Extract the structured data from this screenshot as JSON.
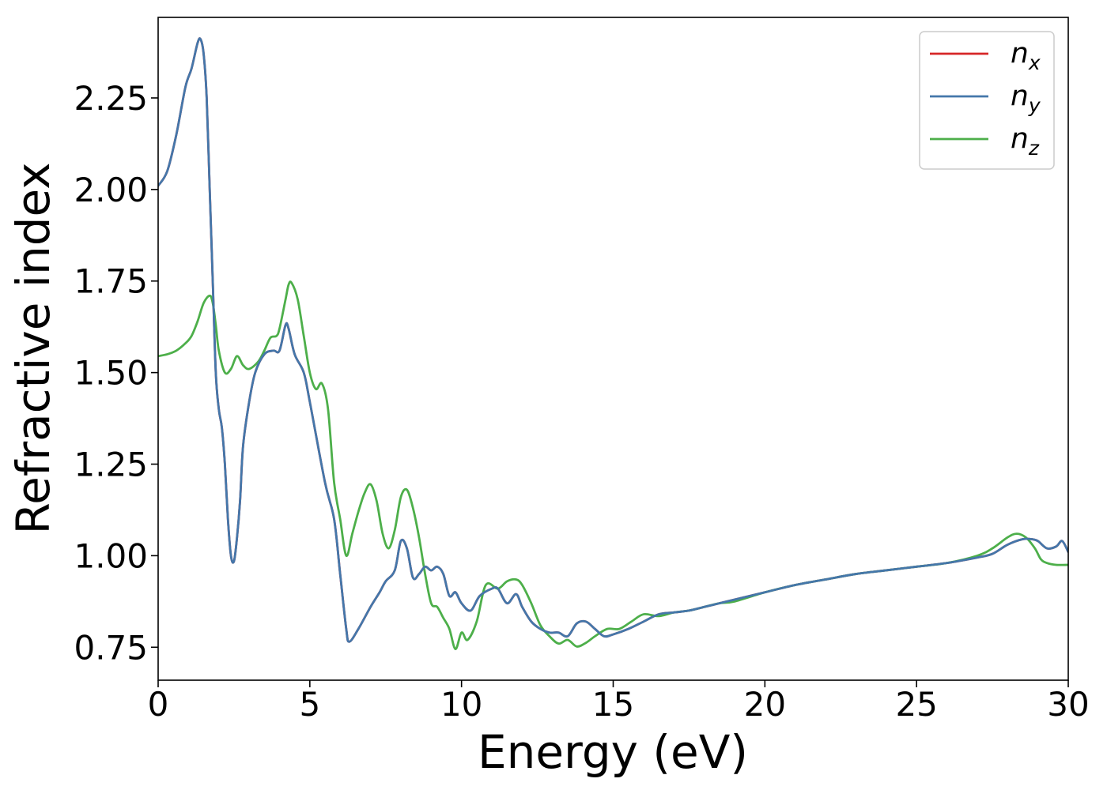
{
  "chart_data": {
    "type": "line",
    "xlabel": "Energy (eV)",
    "ylabel": "Refractive index",
    "xlim": [
      0,
      30
    ],
    "ylim": [
      0.66,
      2.47
    ],
    "xticks": [
      0,
      5,
      10,
      15,
      20,
      25,
      30
    ],
    "xtick_labels": [
      "0",
      "5",
      "10",
      "15",
      "20",
      "25",
      "30"
    ],
    "yticks": [
      0.75,
      1.0,
      1.25,
      1.5,
      1.75,
      2.0,
      2.25
    ],
    "ytick_labels": [
      "0.75",
      "1.00",
      "1.25",
      "1.50",
      "1.75",
      "2.00",
      "2.25"
    ],
    "grid": false,
    "legend_position": "top-right",
    "series": [
      {
        "name": "n_x",
        "label_base": "n",
        "label_sub": "x",
        "color": "#d62728",
        "x": [
          0,
          0.3,
          0.6,
          0.9,
          1.1,
          1.3,
          1.4,
          1.5,
          1.6,
          1.7,
          1.8,
          1.9,
          2.0,
          2.1,
          2.2,
          2.3,
          2.4,
          2.5,
          2.6,
          2.7,
          2.8,
          3.0,
          3.2,
          3.5,
          3.8,
          4.0,
          4.2,
          4.3,
          4.5,
          4.8,
          5.0,
          5.5,
          5.8,
          6.0,
          6.2,
          6.3,
          6.6,
          7.0,
          7.3,
          7.5,
          7.8,
          8.0,
          8.2,
          8.4,
          8.6,
          8.8,
          9.0,
          9.2,
          9.4,
          9.6,
          9.8,
          10.0,
          10.3,
          10.6,
          11.0,
          11.2,
          11.5,
          11.8,
          12.0,
          12.3,
          12.6,
          12.9,
          13.2,
          13.5,
          13.8,
          14.1,
          14.4,
          14.7,
          15.0,
          15.5,
          16.0,
          16.5,
          17.0,
          17.5,
          18.0,
          18.5,
          19.0,
          20.0,
          21.0,
          22.0,
          23.0,
          24.0,
          25.0,
          26.0,
          27.0,
          27.5,
          28.0,
          28.5,
          28.8,
          29.0,
          29.3,
          29.6,
          29.8,
          30.0
        ],
        "values": [
          2.01,
          2.05,
          2.15,
          2.28,
          2.33,
          2.4,
          2.41,
          2.37,
          2.25,
          2.0,
          1.75,
          1.5,
          1.4,
          1.35,
          1.25,
          1.1,
          1.0,
          0.985,
          1.05,
          1.15,
          1.3,
          1.42,
          1.5,
          1.55,
          1.56,
          1.56,
          1.63,
          1.62,
          1.55,
          1.5,
          1.42,
          1.2,
          1.1,
          0.95,
          0.8,
          0.765,
          0.8,
          0.86,
          0.9,
          0.93,
          0.96,
          1.04,
          1.02,
          0.94,
          0.95,
          0.97,
          0.96,
          0.97,
          0.95,
          0.89,
          0.9,
          0.87,
          0.85,
          0.89,
          0.91,
          0.91,
          0.87,
          0.895,
          0.86,
          0.82,
          0.8,
          0.79,
          0.79,
          0.78,
          0.815,
          0.82,
          0.8,
          0.78,
          0.785,
          0.8,
          0.82,
          0.84,
          0.845,
          0.85,
          0.86,
          0.87,
          0.88,
          0.9,
          0.92,
          0.935,
          0.95,
          0.96,
          0.97,
          0.98,
          0.995,
          1.005,
          1.03,
          1.045,
          1.045,
          1.04,
          1.02,
          1.025,
          1.04,
          1.01
        ]
      },
      {
        "name": "n_y",
        "label_base": "n",
        "label_sub": "y",
        "color": "#4477aa",
        "x": [
          0,
          0.3,
          0.6,
          0.9,
          1.1,
          1.3,
          1.4,
          1.5,
          1.6,
          1.7,
          1.8,
          1.9,
          2.0,
          2.1,
          2.2,
          2.3,
          2.4,
          2.5,
          2.6,
          2.7,
          2.8,
          3.0,
          3.2,
          3.5,
          3.8,
          4.0,
          4.2,
          4.3,
          4.5,
          4.8,
          5.0,
          5.5,
          5.8,
          6.0,
          6.2,
          6.3,
          6.6,
          7.0,
          7.3,
          7.5,
          7.8,
          8.0,
          8.2,
          8.4,
          8.6,
          8.8,
          9.0,
          9.2,
          9.4,
          9.6,
          9.8,
          10.0,
          10.3,
          10.6,
          11.0,
          11.2,
          11.5,
          11.8,
          12.0,
          12.3,
          12.6,
          12.9,
          13.2,
          13.5,
          13.8,
          14.1,
          14.4,
          14.7,
          15.0,
          15.5,
          16.0,
          16.5,
          17.0,
          17.5,
          18.0,
          18.5,
          19.0,
          20.0,
          21.0,
          22.0,
          23.0,
          24.0,
          25.0,
          26.0,
          27.0,
          27.5,
          28.0,
          28.5,
          28.8,
          29.0,
          29.3,
          29.6,
          29.8,
          30.0
        ],
        "values": [
          2.01,
          2.05,
          2.15,
          2.28,
          2.33,
          2.4,
          2.41,
          2.37,
          2.25,
          2.0,
          1.75,
          1.5,
          1.4,
          1.35,
          1.25,
          1.1,
          1.0,
          0.985,
          1.05,
          1.15,
          1.3,
          1.42,
          1.5,
          1.55,
          1.56,
          1.56,
          1.63,
          1.62,
          1.55,
          1.5,
          1.42,
          1.2,
          1.1,
          0.95,
          0.8,
          0.765,
          0.8,
          0.86,
          0.9,
          0.93,
          0.96,
          1.04,
          1.02,
          0.94,
          0.95,
          0.97,
          0.96,
          0.97,
          0.95,
          0.89,
          0.9,
          0.87,
          0.85,
          0.89,
          0.91,
          0.91,
          0.87,
          0.895,
          0.86,
          0.82,
          0.8,
          0.79,
          0.79,
          0.78,
          0.815,
          0.82,
          0.8,
          0.78,
          0.785,
          0.8,
          0.82,
          0.84,
          0.845,
          0.85,
          0.86,
          0.87,
          0.88,
          0.9,
          0.92,
          0.935,
          0.95,
          0.96,
          0.97,
          0.98,
          0.995,
          1.005,
          1.03,
          1.045,
          1.045,
          1.04,
          1.02,
          1.025,
          1.04,
          1.01
        ]
      },
      {
        "name": "n_z",
        "label_base": "n",
        "label_sub": "z",
        "color": "#4daf4a",
        "x": [
          0,
          0.3,
          0.6,
          0.9,
          1.1,
          1.3,
          1.5,
          1.7,
          1.8,
          1.9,
          2.0,
          2.2,
          2.4,
          2.6,
          2.8,
          3.0,
          3.3,
          3.5,
          3.7,
          3.9,
          4.0,
          4.2,
          4.3,
          4.4,
          4.6,
          4.8,
          5.0,
          5.2,
          5.4,
          5.6,
          5.8,
          6.0,
          6.2,
          6.4,
          6.6,
          6.8,
          7.0,
          7.2,
          7.4,
          7.6,
          7.8,
          8.0,
          8.2,
          8.4,
          8.6,
          8.8,
          9.0,
          9.2,
          9.4,
          9.6,
          9.8,
          10.0,
          10.2,
          10.5,
          10.8,
          11.2,
          11.5,
          11.8,
          12.0,
          12.3,
          12.6,
          12.9,
          13.2,
          13.5,
          13.8,
          14.1,
          14.4,
          14.8,
          15.2,
          15.6,
          16.0,
          16.5,
          17.0,
          17.5,
          18.0,
          18.5,
          19.0,
          20.0,
          21.0,
          22.0,
          23.0,
          24.0,
          25.0,
          26.0,
          27.0,
          27.5,
          28.0,
          28.3,
          28.6,
          28.9,
          29.1,
          29.3,
          29.6,
          30.0
        ],
        "values": [
          1.545,
          1.55,
          1.56,
          1.58,
          1.6,
          1.64,
          1.69,
          1.71,
          1.69,
          1.63,
          1.56,
          1.5,
          1.51,
          1.545,
          1.52,
          1.51,
          1.53,
          1.56,
          1.595,
          1.6,
          1.62,
          1.7,
          1.74,
          1.745,
          1.7,
          1.6,
          1.5,
          1.455,
          1.47,
          1.4,
          1.2,
          1.1,
          1.0,
          1.06,
          1.12,
          1.17,
          1.195,
          1.15,
          1.06,
          1.02,
          1.07,
          1.16,
          1.18,
          1.13,
          1.05,
          0.95,
          0.87,
          0.86,
          0.83,
          0.8,
          0.745,
          0.79,
          0.77,
          0.82,
          0.92,
          0.91,
          0.93,
          0.935,
          0.92,
          0.87,
          0.81,
          0.78,
          0.76,
          0.77,
          0.752,
          0.762,
          0.78,
          0.8,
          0.8,
          0.82,
          0.84,
          0.835,
          0.845,
          0.85,
          0.86,
          0.87,
          0.875,
          0.9,
          0.92,
          0.935,
          0.95,
          0.96,
          0.97,
          0.98,
          1.0,
          1.02,
          1.05,
          1.06,
          1.05,
          1.02,
          0.99,
          0.98,
          0.975,
          0.975
        ]
      }
    ]
  }
}
